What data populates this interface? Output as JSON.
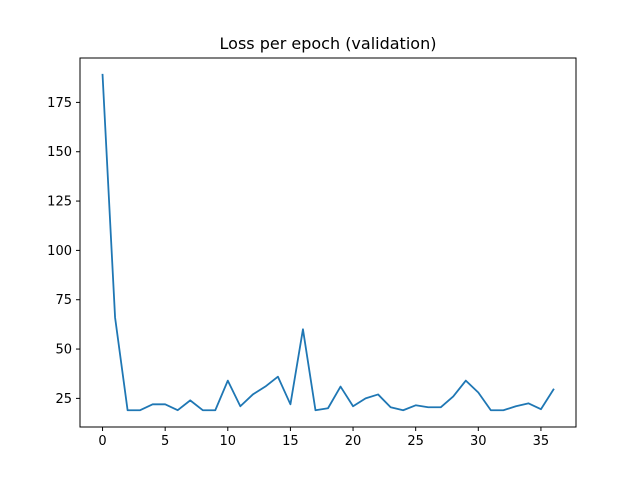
{
  "chart_data": {
    "type": "line",
    "title": "Loss per epoch (validation)",
    "xlabel": "",
    "ylabel": "",
    "xlim": [
      -1.8,
      37.8
    ],
    "ylim": [
      10.5,
      197.5
    ],
    "xticks": [
      0,
      5,
      10,
      15,
      20,
      25,
      30,
      35
    ],
    "yticks": [
      25,
      50,
      75,
      100,
      125,
      150,
      175
    ],
    "grid": false,
    "legend": "none",
    "series": [
      {
        "color": "#1f77b4",
        "x": [
          0,
          1,
          2,
          3,
          4,
          5,
          6,
          7,
          8,
          9,
          10,
          11,
          12,
          13,
          14,
          15,
          16,
          17,
          18,
          19,
          20,
          21,
          22,
          23,
          24,
          25,
          26,
          27,
          28,
          29,
          30,
          31,
          32,
          33,
          34,
          35,
          36
        ],
        "y": [
          189,
          66,
          19,
          19,
          22,
          22,
          19,
          24,
          19,
          19,
          34,
          21,
          27,
          31,
          36,
          22,
          60,
          19,
          20,
          31,
          21,
          25,
          27,
          20.5,
          19,
          21.5,
          20.5,
          20.5,
          26,
          34,
          28,
          19,
          19,
          21,
          22.5,
          19.5,
          29.5
        ]
      }
    ]
  }
}
